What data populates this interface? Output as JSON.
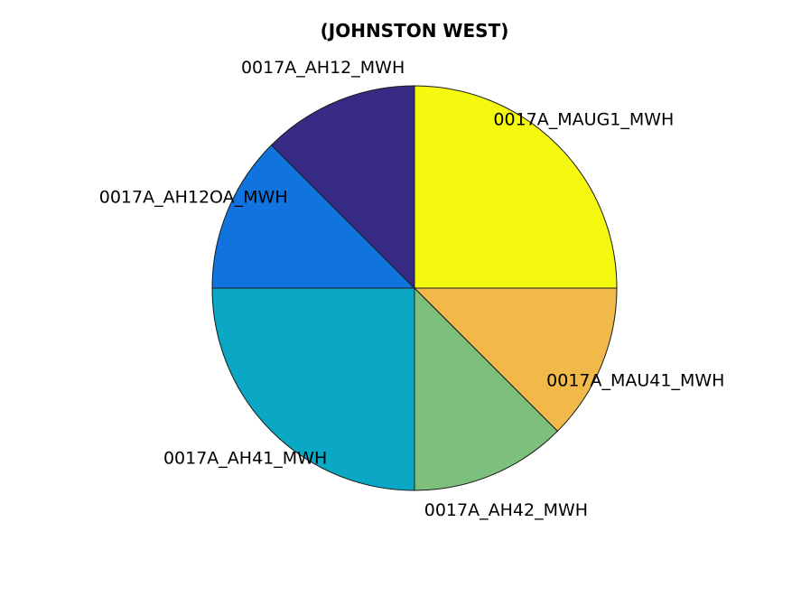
{
  "chart_data": {
    "type": "pie",
    "title": "(JOHNSTON WEST)",
    "start": "12 o'clock",
    "direction": "clockwise",
    "slices": [
      {
        "label": "0017A_MAUG1_MWH",
        "value": 25,
        "color": "#f5f90f"
      },
      {
        "label": "0017A_MAU41_MWH",
        "value": 12.5,
        "color": "#f0b94a"
      },
      {
        "label": "0017A_AH42_MWH",
        "value": 12.5,
        "color": "#7dbf7d"
      },
      {
        "label": "0017A_AH41_MWH",
        "value": 25,
        "color": "#0aa8c4"
      },
      {
        "label": "0017A_AH12OA_MWH",
        "value": 12.5,
        "color": "#1073de"
      },
      {
        "label": "0017A_AH12_MWH",
        "value": 12.5,
        "color": "#372b86"
      }
    ]
  }
}
